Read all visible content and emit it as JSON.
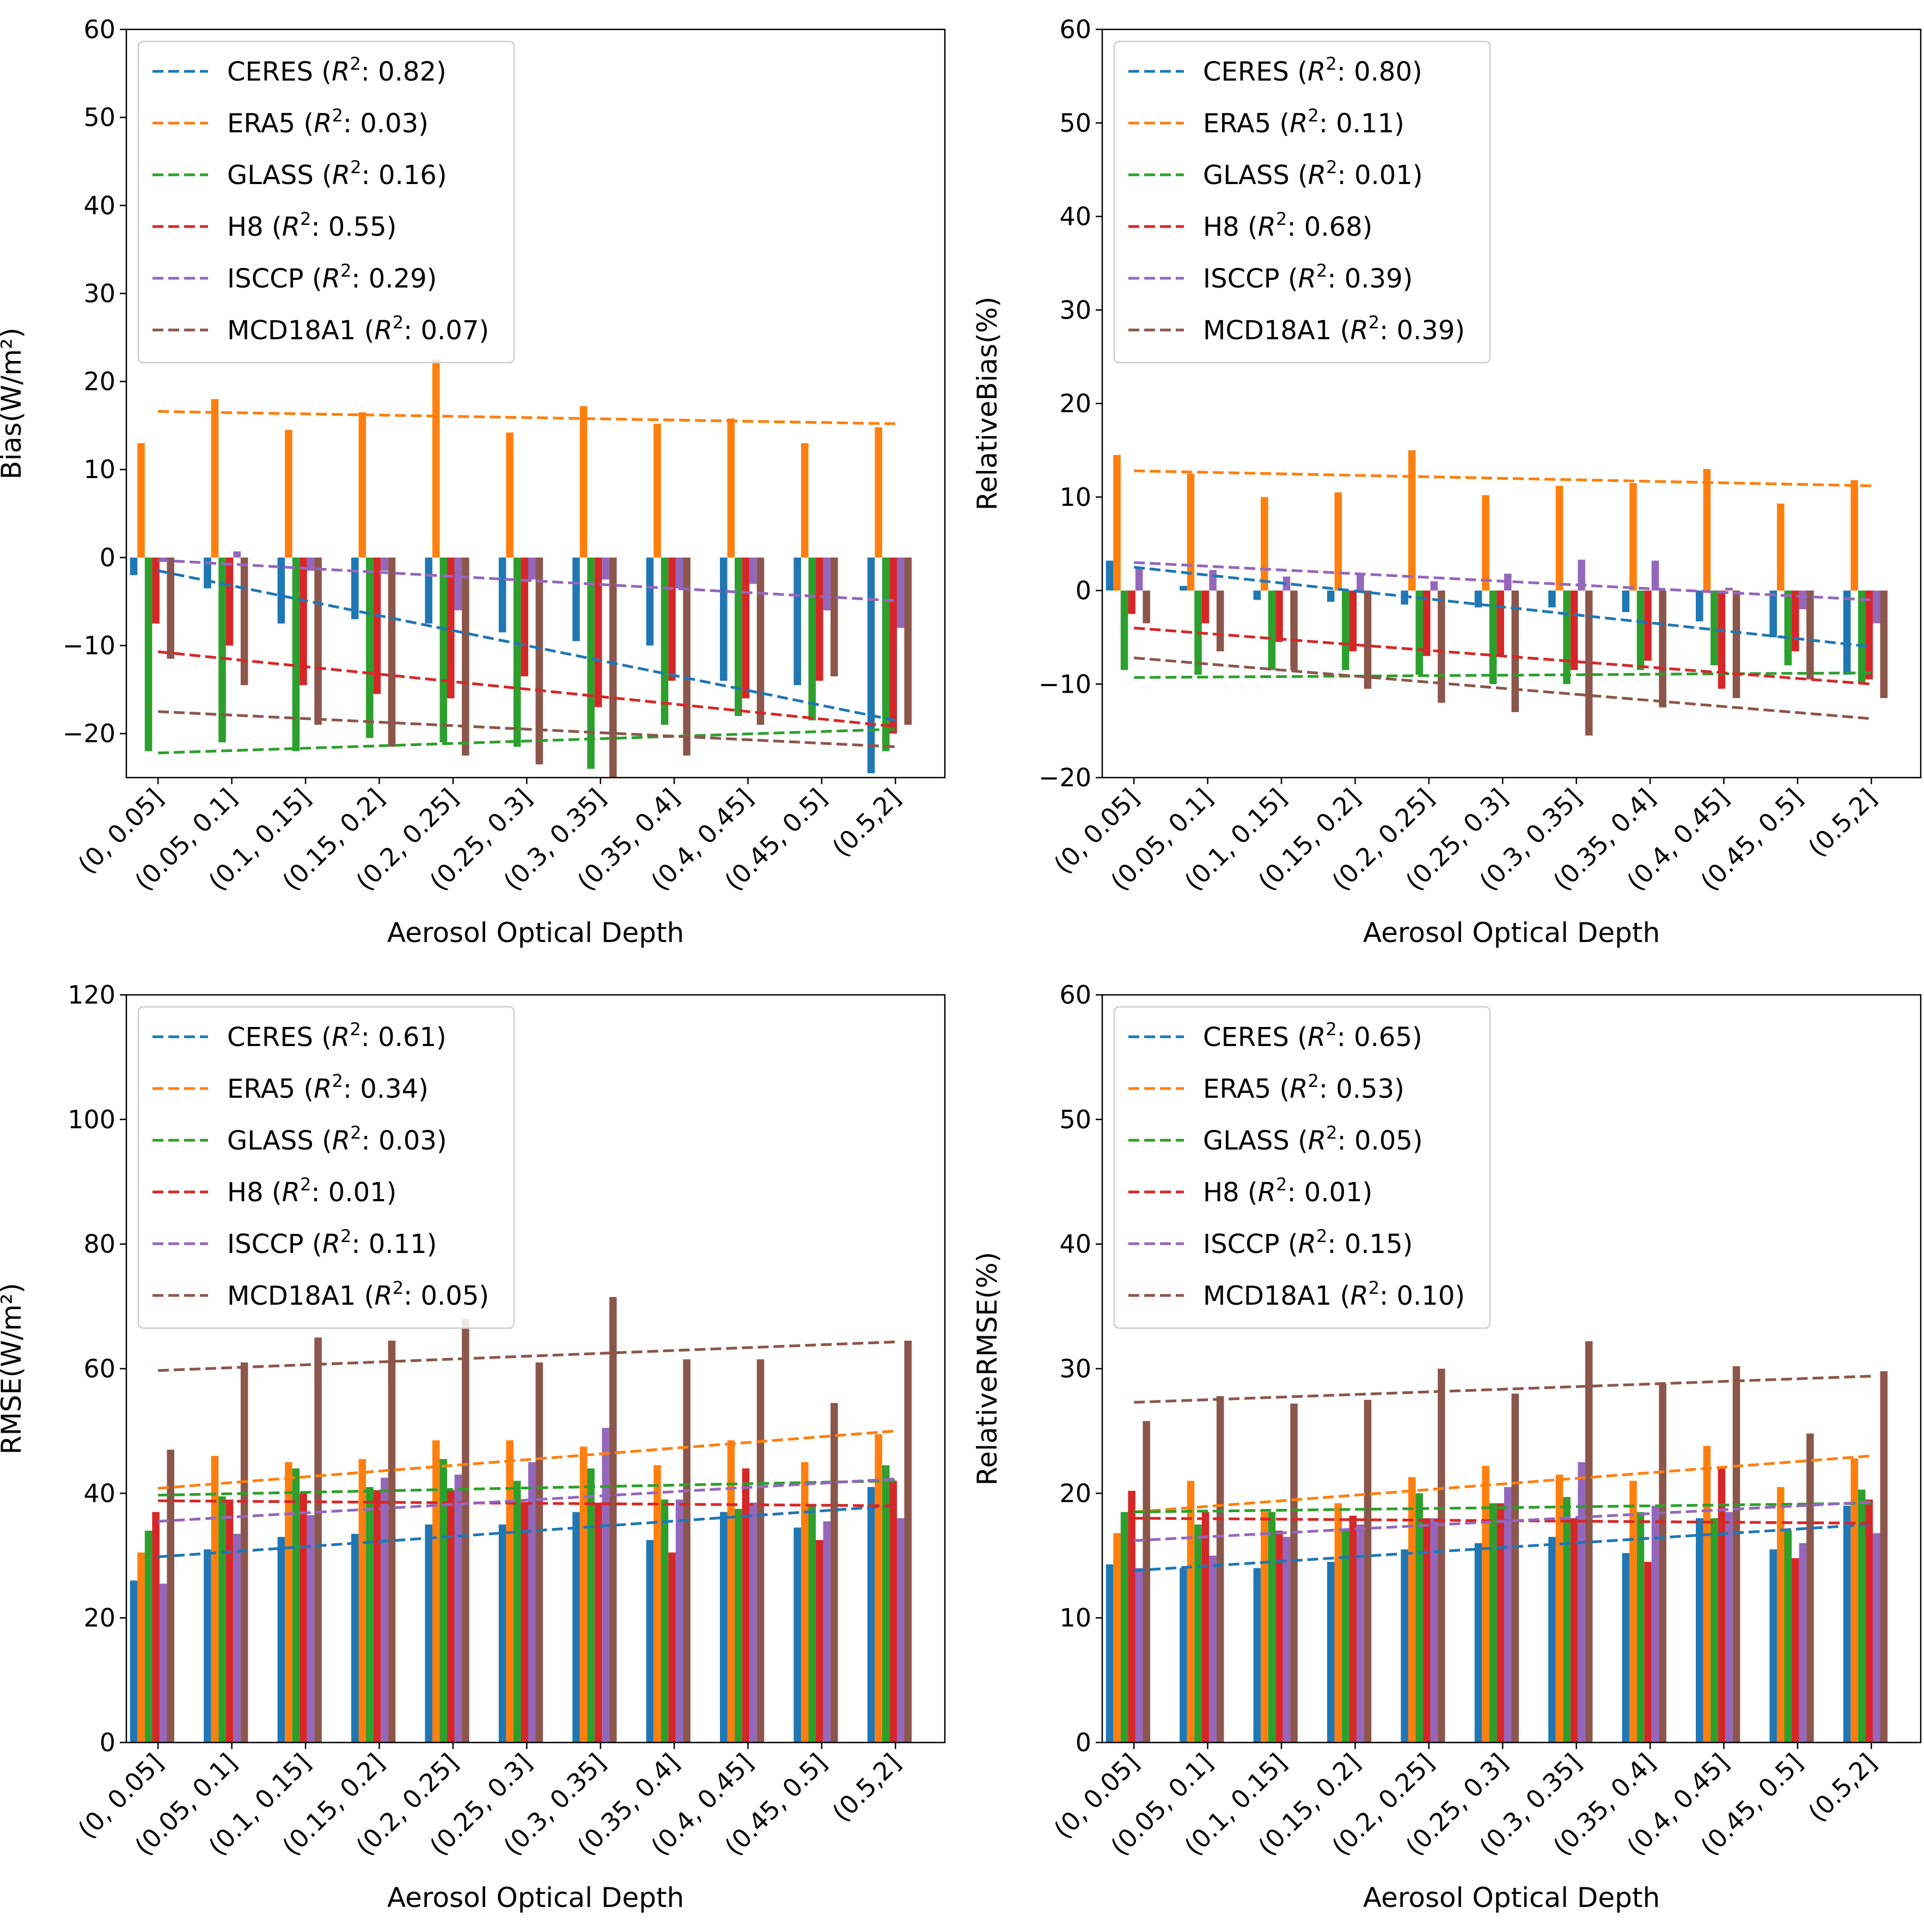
{
  "colors": {
    "CERES": "#1f77b4",
    "ERA5": "#ff7f0e",
    "GLASS": "#2ca02c",
    "H8": "#d62728",
    "ISCCP": "#9467bd",
    "MCD18A1": "#8c564b"
  },
  "chart_data": [
    {
      "type": "bar",
      "id": "bias",
      "xlabel": "Aerosol Optical Depth",
      "ylabel": "Bias(W/m²)",
      "ylim": [
        -25,
        60
      ],
      "yticks": [
        -20,
        -10,
        0,
        10,
        20,
        30,
        40,
        50,
        60
      ],
      "legend_position": "upper-left",
      "categories": [
        "(0, 0.05]",
        "(0.05, 0.1]",
        "(0.1, 0.15]",
        "(0.15, 0.2]",
        "(0.2, 0.25]",
        "(0.25, 0.3]",
        "(0.3, 0.35]",
        "(0.35, 0.4]",
        "(0.4, 0.45]",
        "(0.45, 0.5]",
        "(0.5,2]"
      ],
      "series": [
        {
          "name": "CERES",
          "r2": "0.82",
          "values": [
            -2,
            -3.5,
            -7.5,
            -7,
            -7.5,
            -8.5,
            -9.5,
            -10,
            -14,
            -14.5,
            -24.5
          ],
          "trend": [
            -1.5,
            -18.5
          ]
        },
        {
          "name": "ERA5",
          "r2": "0.03",
          "values": [
            13,
            18,
            14.5,
            16.5,
            22.5,
            14.2,
            17.2,
            15.2,
            15.8,
            13,
            14.8
          ],
          "trend": [
            16.6,
            15.2
          ]
        },
        {
          "name": "GLASS",
          "r2": "0.16",
          "values": [
            -22,
            -21,
            -22,
            -20.5,
            -21,
            -21.5,
            -24,
            -19,
            -18,
            -18.5,
            -22
          ],
          "trend": [
            -22.2,
            -19.5
          ]
        },
        {
          "name": "H8",
          "r2": "0.55",
          "values": [
            -7.5,
            -10,
            -14.5,
            -15.5,
            -16,
            -13.5,
            -17,
            -14,
            -16,
            -14,
            -20
          ],
          "trend": [
            -10.7,
            -19.2
          ]
        },
        {
          "name": "ISCCP",
          "r2": "0.29",
          "values": [
            -0.5,
            0.7,
            -1.5,
            -1.5,
            -6,
            -2.5,
            -2.5,
            -3.5,
            -3,
            -6,
            -8
          ],
          "trend": [
            -0.3,
            -4.9
          ]
        },
        {
          "name": "MCD18A1",
          "r2": "0.07",
          "values": [
            -11.5,
            -14.5,
            -19,
            -21.5,
            -22.5,
            -23.5,
            -25,
            -22.5,
            -19,
            -13.5,
            -19
          ],
          "trend": [
            -17.5,
            -21.5
          ]
        }
      ]
    },
    {
      "type": "bar",
      "id": "relative-bias",
      "xlabel": "Aerosol Optical Depth",
      "ylabel": "RelativeBias(%)",
      "ylim": [
        -20,
        60
      ],
      "yticks": [
        -20,
        -10,
        0,
        10,
        20,
        30,
        40,
        50,
        60
      ],
      "legend_position": "upper-left",
      "categories": [
        "(0, 0.05]",
        "(0.05, 0.1]",
        "(0.1, 0.15]",
        "(0.15, 0.2]",
        "(0.2, 0.25]",
        "(0.25, 0.3]",
        "(0.3, 0.35]",
        "(0.35, 0.4]",
        "(0.4, 0.45]",
        "(0.45, 0.5]",
        "(0.5,2]"
      ],
      "series": [
        {
          "name": "CERES",
          "r2": "0.80",
          "values": [
            3.2,
            0.5,
            -1,
            -1.2,
            -1.5,
            -1.8,
            -1.8,
            -2.3,
            -3.3,
            -5,
            -9
          ],
          "trend": [
            2.5,
            -6
          ]
        },
        {
          "name": "ERA5",
          "r2": "0.11",
          "values": [
            14.5,
            12.5,
            10,
            10.5,
            15,
            10.2,
            11.2,
            11.5,
            13,
            9.3,
            11.8
          ],
          "trend": [
            12.8,
            11.2
          ]
        },
        {
          "name": "GLASS",
          "r2": "0.01",
          "values": [
            -8.5,
            -9,
            -8.5,
            -8.5,
            -9,
            -10,
            -10,
            -8.5,
            -8,
            -8,
            -10
          ],
          "trend": [
            -9.3,
            -8.8
          ]
        },
        {
          "name": "H8",
          "r2": "0.68",
          "values": [
            -2.5,
            -3.5,
            -5.5,
            -6.5,
            -7,
            -7,
            -8.5,
            -7.5,
            -10.5,
            -6.5,
            -9.5
          ],
          "trend": [
            -4,
            -10
          ]
        },
        {
          "name": "ISCCP",
          "r2": "0.39",
          "values": [
            2.5,
            2.2,
            1.5,
            1.8,
            1,
            1.8,
            3.3,
            3.2,
            0.3,
            -2,
            -3.5
          ],
          "trend": [
            3,
            -1
          ]
        },
        {
          "name": "MCD18A1",
          "r2": "0.39",
          "values": [
            -3.5,
            -6.5,
            -8.5,
            -10.5,
            -12,
            -13,
            -15.5,
            -12.5,
            -11.5,
            -9.5,
            -11.5
          ],
          "trend": [
            -7.2,
            -13.7
          ]
        }
      ]
    },
    {
      "type": "bar",
      "id": "rmse",
      "xlabel": "Aerosol Optical Depth",
      "ylabel": "RMSE(W/m²)",
      "ylim": [
        0,
        120
      ],
      "yticks": [
        0,
        20,
        40,
        60,
        80,
        100,
        120
      ],
      "legend_position": "upper-left",
      "categories": [
        "(0, 0.05]",
        "(0.05, 0.1]",
        "(0.1, 0.15]",
        "(0.15, 0.2]",
        "(0.2, 0.25]",
        "(0.25, 0.3]",
        "(0.3, 0.35]",
        "(0.35, 0.4]",
        "(0.4, 0.45]",
        "(0.45, 0.5]",
        "(0.5,2]"
      ],
      "series": [
        {
          "name": "CERES",
          "r2": "0.61",
          "values": [
            26,
            31,
            33,
            33.5,
            35,
            35,
            37,
            32.5,
            37,
            34.5,
            41
          ],
          "trend": [
            29.8,
            38
          ]
        },
        {
          "name": "ERA5",
          "r2": "0.34",
          "values": [
            30.5,
            46,
            45,
            45.5,
            48.5,
            48.5,
            47.5,
            44.5,
            48.5,
            45,
            49.5
          ],
          "trend": [
            40.8,
            50
          ]
        },
        {
          "name": "GLASS",
          "r2": "0.03",
          "values": [
            34,
            39.5,
            44,
            41,
            45.5,
            42,
            44,
            39,
            37.5,
            38,
            44.5
          ],
          "trend": [
            39.7,
            42
          ]
        },
        {
          "name": "H8",
          "r2": "0.01",
          "values": [
            37,
            39,
            40,
            40.5,
            40.5,
            38.5,
            38.5,
            30.5,
            44,
            32.5,
            42
          ],
          "trend": [
            38.8,
            38
          ]
        },
        {
          "name": "ISCCP",
          "r2": "0.11",
          "values": [
            25.5,
            33.5,
            36.5,
            42.5,
            43,
            45,
            50.5,
            39,
            38.5,
            35.5,
            36
          ],
          "trend": [
            35.5,
            42.3
          ]
        },
        {
          "name": "MCD18A1",
          "r2": "0.05",
          "values": [
            47,
            61,
            65,
            64.5,
            68,
            61,
            71.5,
            61.5,
            61.5,
            54.5,
            64.5
          ],
          "trend": [
            59.7,
            64.3
          ]
        }
      ]
    },
    {
      "type": "bar",
      "id": "relative-rmse",
      "xlabel": "Aerosol Optical Depth",
      "ylabel": "RelativeRMSE(%)",
      "ylim": [
        0,
        60
      ],
      "yticks": [
        0,
        10,
        20,
        30,
        40,
        50,
        60
      ],
      "legend_position": "upper-left",
      "categories": [
        "(0, 0.05]",
        "(0.05, 0.1]",
        "(0.1, 0.15]",
        "(0.15, 0.2]",
        "(0.2, 0.25]",
        "(0.25, 0.3]",
        "(0.3, 0.35]",
        "(0.35, 0.4]",
        "(0.4, 0.45]",
        "(0.45, 0.5]",
        "(0.5,2]"
      ],
      "series": [
        {
          "name": "CERES",
          "r2": "0.65",
          "values": [
            14.3,
            14,
            14,
            14.5,
            15.5,
            16,
            16.5,
            15.2,
            18,
            15.5,
            19
          ],
          "trend": [
            13.8,
            17.5
          ]
        },
        {
          "name": "ERA5",
          "r2": "0.53",
          "values": [
            16.8,
            21,
            18.5,
            19.2,
            21.3,
            22.2,
            21.5,
            21,
            23.8,
            20.5,
            22.8
          ],
          "trend": [
            18.5,
            23
          ]
        },
        {
          "name": "GLASS",
          "r2": "0.05",
          "values": [
            18.5,
            17.5,
            18.5,
            17,
            20,
            19.2,
            19.7,
            18.5,
            18,
            17,
            20.3
          ],
          "trend": [
            18.5,
            19.2
          ]
        },
        {
          "name": "H8",
          "r2": "0.01",
          "values": [
            20.2,
            18.5,
            17,
            18.2,
            18,
            19.2,
            18,
            14.5,
            22,
            14.8,
            19.5
          ],
          "trend": [
            18,
            17.6
          ]
        },
        {
          "name": "ISCCP",
          "r2": "0.15",
          "values": [
            14,
            15,
            16.5,
            17.5,
            18,
            20.5,
            22.5,
            19,
            18.5,
            16,
            16.8
          ],
          "trend": [
            16.2,
            19.3
          ]
        },
        {
          "name": "MCD18A1",
          "r2": "0.10",
          "values": [
            25.8,
            27.8,
            27.2,
            27.5,
            30,
            28,
            32.2,
            28.8,
            30.2,
            24.8,
            29.8
          ],
          "trend": [
            27.3,
            29.4
          ]
        }
      ]
    }
  ]
}
